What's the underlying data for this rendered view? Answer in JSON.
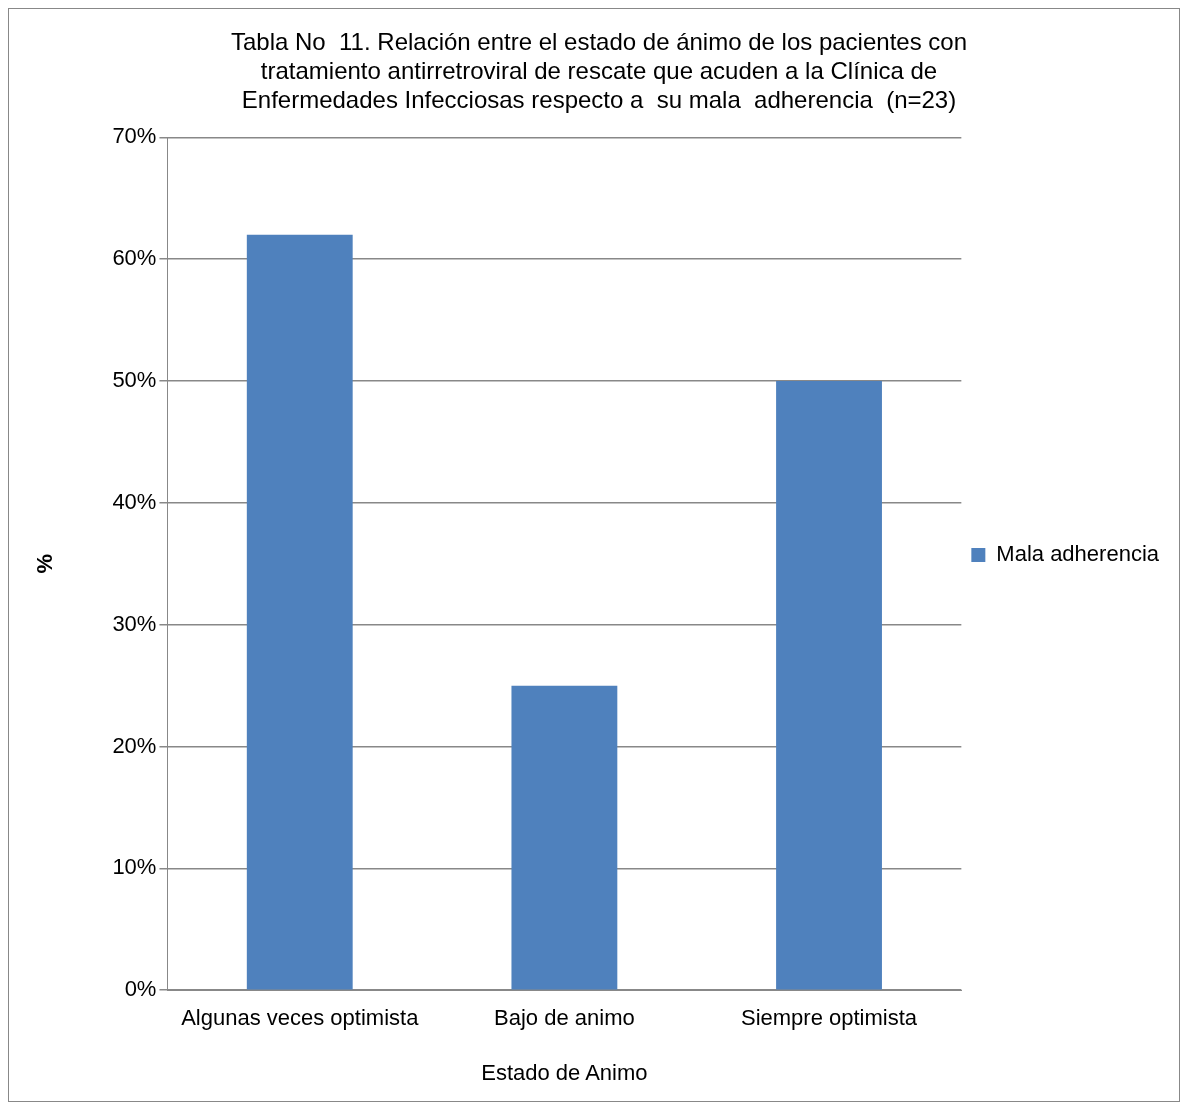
{
  "chart_data": {
    "type": "bar",
    "title": "Tabla No  11. Relación entre el estado de ánimo de los pacientes con tratamiento antirretroviral de rescate que acuden a la Clínica de Enfermedades Infecciosas respecto a  su mala  adherencia  (n=23)",
    "xlabel": "Estado de Animo",
    "ylabel": "%",
    "categories": [
      "Algunas veces optimista",
      "Bajo de animo",
      "Siempre optimista"
    ],
    "series": [
      {
        "name": "Mala adherencia",
        "color": "#4f81bd",
        "values": [
          62,
          25,
          50
        ]
      }
    ],
    "ylim": [
      0,
      70
    ],
    "yticks": [
      {
        "value": 0,
        "label": "0%"
      },
      {
        "value": 10,
        "label": "10%"
      },
      {
        "value": 20,
        "label": "20%"
      },
      {
        "value": 30,
        "label": "30%"
      },
      {
        "value": 40,
        "label": "40%"
      },
      {
        "value": 50,
        "label": "50%"
      },
      {
        "value": 60,
        "label": "60%"
      },
      {
        "value": 70,
        "label": "70%"
      }
    ],
    "grid": "y",
    "legend": "right"
  }
}
